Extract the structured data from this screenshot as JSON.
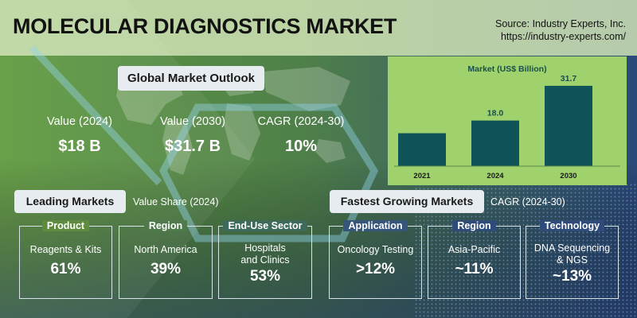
{
  "title": "MOLECULAR DIAGNOSTICS MARKET",
  "source": {
    "line1": "Source: Industry Experts, Inc.",
    "line2": "https://industry-experts.com/"
  },
  "outlook": {
    "heading": "Global Market Outlook",
    "kpis": [
      {
        "label": "Value (2024)",
        "value": "$18 B"
      },
      {
        "label": "Value (2030)",
        "value": "$31.7 B"
      },
      {
        "label": "CAGR (2024-30)",
        "value": "10%"
      }
    ]
  },
  "leading": {
    "heading": "Leading Markets",
    "subheading": "Value Share (2024)",
    "cards": [
      {
        "category": "Product",
        "name": "Reagents & Kits",
        "value": "61%"
      },
      {
        "category": "Region",
        "name": "North America",
        "value": "39%"
      },
      {
        "category": "End-Use Sector",
        "name": "Hospitals\nand Clinics",
        "value": "53%"
      }
    ]
  },
  "fastest": {
    "heading": "Fastest Growing Markets",
    "subheading": "CAGR (2024-30)",
    "cards": [
      {
        "category": "Application",
        "name": "Oncology Testing",
        "value": ">12%"
      },
      {
        "category": "Region",
        "name": "Asia-Pacific",
        "value": "~11%"
      },
      {
        "category": "Technology",
        "name": "DNA Sequencing\n& NGS",
        "value": "~13%"
      }
    ]
  },
  "chart_data": {
    "type": "bar",
    "title": "Market (US$ Billion)",
    "categories": [
      "2021",
      "2024",
      "2030"
    ],
    "values": [
      null,
      18.0,
      31.7
    ],
    "value_labels": [
      "",
      "18.0",
      "31.7"
    ],
    "ylim": [
      0,
      32
    ],
    "grid": false,
    "bar_color": "#0f5458"
  },
  "colors": {
    "accent_green": "#9fd26c",
    "bar": "#0f5458",
    "pill_bg": "#e6ecef"
  }
}
